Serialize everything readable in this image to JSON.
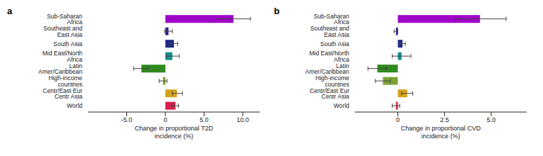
{
  "chart_data": [
    {
      "type": "bar",
      "title": "a",
      "orientation": "horizontal",
      "categories": [
        "Sub-Saharan Africa",
        "Southeast and East Asia",
        "South Asia",
        "Mid East/North Africa",
        "Latin Amer/Caribbean",
        "High-income countries",
        "Centr/East Eur Centr Asia",
        "World"
      ],
      "values": [
        8.8,
        0.4,
        1.1,
        0.9,
        -3.1,
        -0.3,
        1.5,
        1.3
      ],
      "error_low": [
        6.7,
        -0.1,
        0.6,
        0.1,
        -4.1,
        -0.8,
        0.9,
        0.9
      ],
      "error_high": [
        11.0,
        0.9,
        1.6,
        1.8,
        -2.2,
        0.2,
        2.2,
        1.7
      ],
      "colors": [
        "#a000c8",
        "#3b1f8e",
        "#1f2a85",
        "#17908f",
        "#2f8a1f",
        "#7ba236",
        "#d4a21c",
        "#d81e4b"
      ],
      "xlabel": "Change in proportional T2D incidence (%)",
      "xlim": [
        -10,
        12.2
      ],
      "xticks": [
        {
          "value": -5,
          "label": "-5.0"
        },
        0,
        {
          "value": 5,
          "label": "5.0"
        },
        {
          "value": 10,
          "label": "10.0"
        }
      ]
    },
    {
      "type": "bar",
      "title": "b",
      "orientation": "horizontal",
      "categories": [
        "Sub-Saharan Africa",
        "Southeast and East Asia",
        "South Asia",
        "Mid East/North Africa",
        "Latin Amer/Caribbean",
        "High-income countries",
        "Centr/East Eur Centr Asia",
        "World"
      ],
      "values": [
        4.4,
        -0.1,
        0.25,
        0.2,
        -1.1,
        -0.8,
        0.5,
        -0.1
      ],
      "error_low": [
        3.1,
        -0.2,
        0.1,
        -0.3,
        -1.6,
        -1.2,
        0.2,
        -0.3
      ],
      "error_high": [
        5.8,
        0.0,
        0.4,
        0.7,
        -0.6,
        -0.4,
        0.8,
        0.1
      ],
      "colors": [
        "#a000c8",
        "#3b1f8e",
        "#1f2a85",
        "#17908f",
        "#2f8a1f",
        "#7ba236",
        "#d4a21c",
        "#d81e4b"
      ],
      "xlabel": "Change in proportional CVD incidence (%)",
      "xlim": [
        -2.3,
        6.9
      ],
      "xticks": [
        0,
        2.5,
        {
          "value": 5,
          "label": "5.0"
        }
      ]
    }
  ]
}
